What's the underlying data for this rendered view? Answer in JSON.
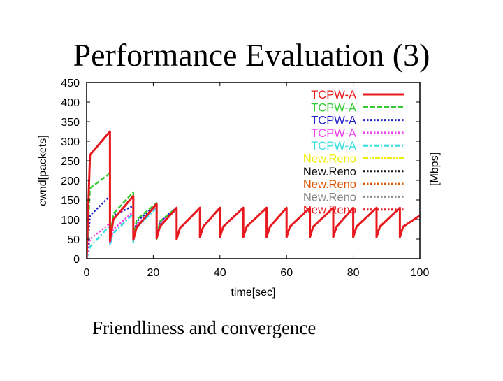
{
  "slide": {
    "title": "Performance Evaluation (3)",
    "caption": "Friendliness and convergence"
  },
  "chart_data": {
    "type": "line",
    "title": "",
    "xlabel": "time[sec]",
    "ylabel": "cwnd[packets]",
    "y2label": "[Mbps]",
    "xlim": [
      0,
      100
    ],
    "ylim": [
      0,
      450
    ],
    "xticks": [
      0,
      20,
      40,
      60,
      80,
      100
    ],
    "yticks": [
      0,
      50,
      100,
      150,
      200,
      250,
      300,
      350,
      400,
      450
    ],
    "grid": false,
    "legend_position": "top-right",
    "series": [
      {
        "name": "TCPW-A",
        "color": "#e8191e",
        "dash": "solid",
        "x": [
          0,
          1,
          7,
          7,
          8,
          14,
          14,
          15,
          21,
          21,
          22,
          27,
          27,
          28,
          34,
          34,
          35,
          40,
          40,
          41,
          47,
          47,
          48,
          54,
          54,
          55,
          60,
          60,
          61,
          67,
          67,
          68,
          74,
          74,
          75,
          80,
          80,
          81,
          87,
          87,
          88,
          94,
          94,
          95,
          100
        ],
        "y": [
          0,
          265,
          325,
          45,
          100,
          160,
          48,
          80,
          140,
          52,
          82,
          130,
          50,
          78,
          130,
          55,
          82,
          130,
          55,
          82,
          130,
          55,
          82,
          130,
          55,
          82,
          130,
          55,
          82,
          130,
          55,
          82,
          130,
          55,
          82,
          130,
          55,
          82,
          130,
          55,
          82,
          130,
          55,
          82,
          110
        ]
      },
      {
        "name": "TCPW-A",
        "color": "#33cc33",
        "dash": "dashed",
        "x": [
          0,
          1,
          7,
          7,
          8,
          14,
          14,
          15,
          21,
          21,
          22,
          27
        ],
        "y": [
          0,
          180,
          218,
          48,
          115,
          170,
          50,
          100,
          142,
          50,
          95,
          130
        ]
      },
      {
        "name": "TCPW-A",
        "color": "#2222cc",
        "dash": "dotted",
        "x": [
          0,
          1,
          7,
          7,
          8,
          14,
          14,
          15,
          21,
          21,
          22,
          27
        ],
        "y": [
          0,
          110,
          160,
          45,
          110,
          135,
          50,
          95,
          138,
          55,
          95,
          130
        ]
      },
      {
        "name": "TCPW-A",
        "color": "#ee44ee",
        "dash": "dotted",
        "x": [
          0,
          1,
          7,
          7,
          8,
          14,
          14,
          15,
          21,
          21,
          22,
          27
        ],
        "y": [
          0,
          50,
          90,
          40,
          75,
          120,
          45,
          85,
          135,
          55,
          92,
          128
        ]
      },
      {
        "name": "TCPW-A",
        "color": "#33dddd",
        "dash": "dashdot",
        "x": [
          0,
          1,
          7,
          7,
          8,
          14,
          14,
          15,
          21,
          21,
          22,
          27
        ],
        "y": [
          0,
          30,
          85,
          35,
          65,
          115,
          42,
          80,
          130,
          50,
          90,
          125
        ]
      },
      {
        "name": "New.Reno",
        "color": "#eeee00",
        "dash": "dashdotdot",
        "x": [],
        "y": []
      },
      {
        "name": "New.Reno",
        "color": "#111111",
        "dash": "dotted",
        "x": [],
        "y": []
      },
      {
        "name": "New.Reno",
        "color": "#dd5500",
        "dash": "dotted",
        "x": [],
        "y": []
      },
      {
        "name": "New.Reno",
        "color": "#888888",
        "dash": "dotted",
        "x": [],
        "y": []
      },
      {
        "name": "New.Reno",
        "color": "#e8191e",
        "dash": "dotted",
        "x": [],
        "y": []
      }
    ]
  }
}
